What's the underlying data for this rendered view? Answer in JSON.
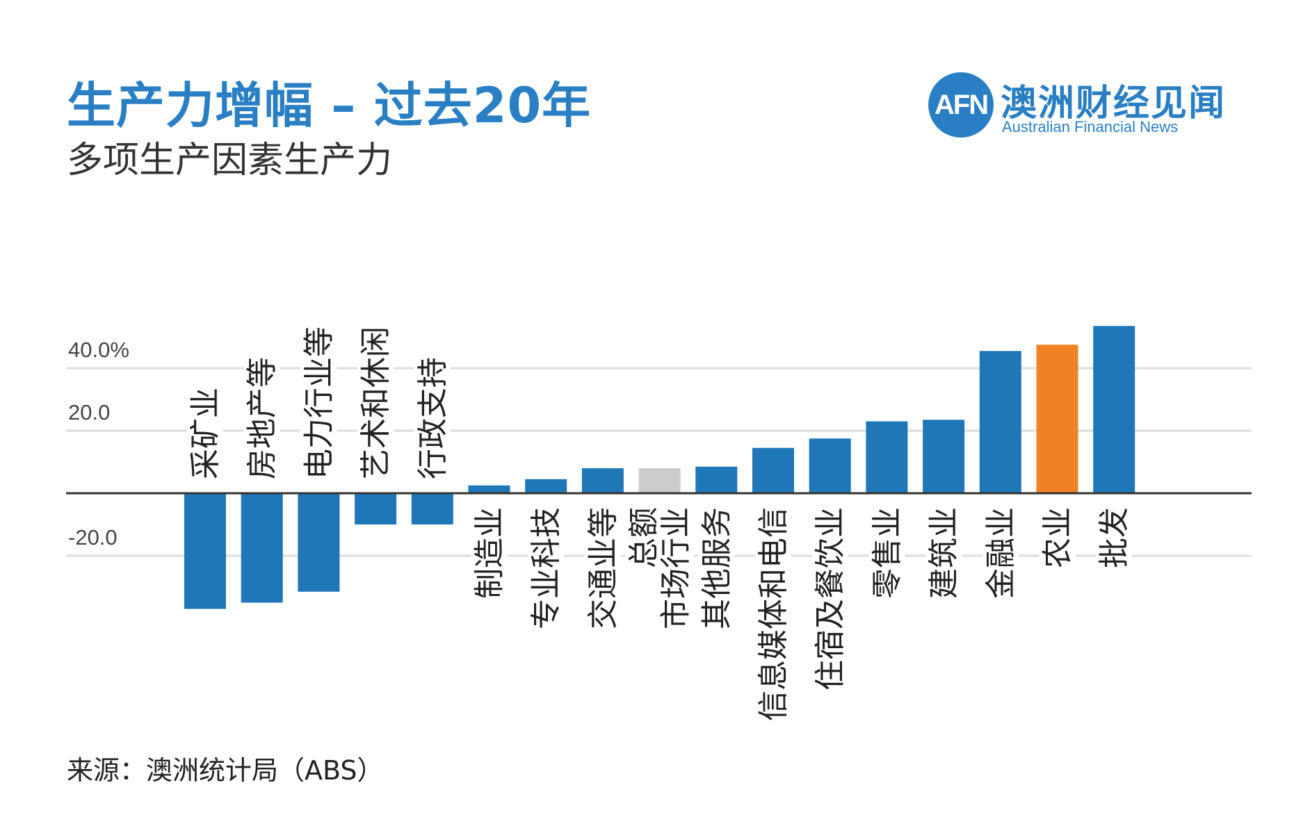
{
  "title": "生产力增幅 – 过去20年",
  "subtitle": "多项生产因素生产力",
  "source": "来源：澳洲统计局（ABS）",
  "logo": {
    "mark": "AFN",
    "name_cn": "澳洲财经见闻",
    "name_en": "Australian Financial News"
  },
  "colors": {
    "bar": "#1f77b8",
    "highlight": "#f08224",
    "total": "#cccccc",
    "title": "#2a7fc4",
    "grid": "#dddddd",
    "axis": "#333333"
  },
  "chart_data": {
    "type": "bar",
    "title": "生产力增幅 – 过去20年",
    "subtitle": "多项生产因素生产力",
    "xlabel": "",
    "ylabel": "",
    "ylim": [
      -37,
      53
    ],
    "y_ticks": [
      {
        "value": 40,
        "label": "40.0%"
      },
      {
        "value": 20,
        "label": "20.0"
      },
      {
        "value": -20,
        "label": "-20.0"
      }
    ],
    "grid": true,
    "categories": [
      "采矿业",
      "房地产等",
      "电力行业等",
      "艺术和休闲",
      "行政支持",
      "制造业",
      "专业科技",
      "交通业等",
      "总额市场行业",
      "其他服务",
      "信息媒体和电信",
      "住宿及餐饮业",
      "零售业",
      "建筑业",
      "金融业",
      "农业",
      "批发"
    ],
    "label_lines": [
      [
        "采矿业"
      ],
      [
        "房地产等"
      ],
      [
        "电力行业等"
      ],
      [
        "艺术和休闲"
      ],
      [
        "行政支持"
      ],
      [
        "制造业"
      ],
      [
        "专业科技"
      ],
      [
        "交通业等"
      ],
      [
        "总额",
        "市场行业"
      ],
      [
        "其他服务"
      ],
      [
        "信息媒体和电信"
      ],
      [
        "住宿及餐饮业"
      ],
      [
        "零售业"
      ],
      [
        "建筑业"
      ],
      [
        "金融业"
      ],
      [
        "农业"
      ],
      [
        "批发"
      ]
    ],
    "values": [
      -37,
      -35,
      -31.5,
      -10,
      -10,
      2.5,
      4.5,
      8,
      8,
      8.5,
      14.5,
      17.5,
      23,
      23.5,
      45.5,
      47.5,
      53.5
    ],
    "highlight": [
      "农业"
    ],
    "total": [
      "总额市场行业"
    ]
  }
}
